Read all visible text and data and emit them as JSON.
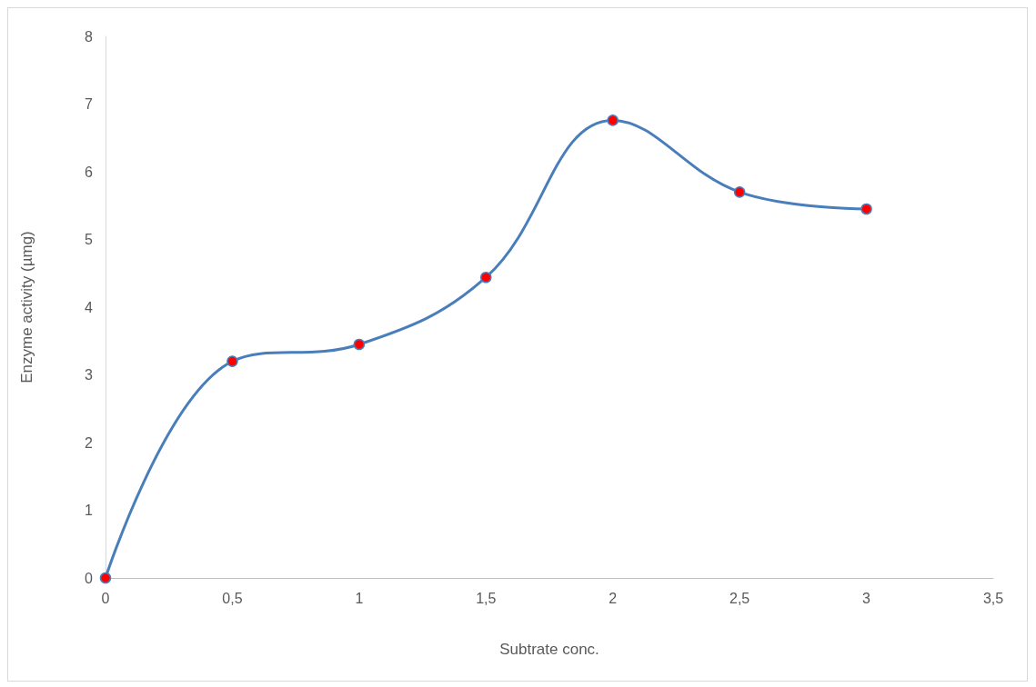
{
  "chart_data": {
    "type": "line",
    "xlabel": "Subtrate conc.",
    "ylabel": "Enzyme activity (µmg)",
    "series": [
      {
        "color": "#4a7ebb",
        "colors": [
          "#ff0000",
          "#ff0000",
          "#ff0000",
          "#ff0000",
          "#ff0000",
          "#ff0000",
          "#ff0000"
        ],
        "x": [
          0,
          0.5,
          1,
          1.5,
          2,
          2.5,
          3
        ],
        "values": [
          0,
          3.2,
          3.45,
          4.44,
          6.76,
          5.7,
          5.45
        ]
      }
    ],
    "xlim": [
      0,
      3.5
    ],
    "xticks": [
      0,
      {
        "value": 0.5,
        "label": "0,5"
      },
      1,
      {
        "value": 1.5,
        "label": "1,5"
      },
      2,
      {
        "value": 2.5,
        "label": "2,5"
      },
      3,
      {
        "value": 3.5,
        "label": "3,5"
      }
    ],
    "ylim": [
      0,
      8
    ],
    "yticks": [
      0,
      1,
      2,
      3,
      4,
      5,
      6,
      7,
      8
    ],
    "grid": false,
    "marker": "circle",
    "line_style": "solid"
  }
}
